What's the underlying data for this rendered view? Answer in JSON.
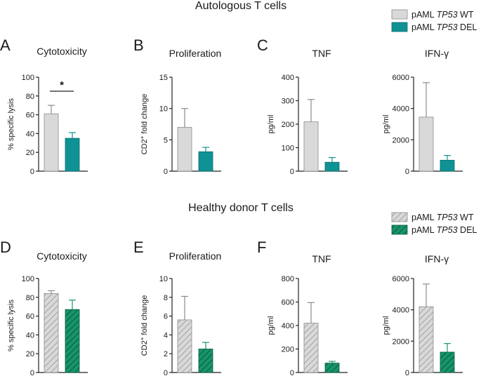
{
  "section_titles": {
    "top": "Autologous T cells",
    "bottom": "Healthy donor T cells"
  },
  "legend": {
    "top": [
      {
        "prefix": "pAML ",
        "gene": "TP53",
        "suffix": " WT",
        "style": "solid",
        "color": "#d9d9d9"
      },
      {
        "prefix": "pAML ",
        "gene": "TP53",
        "suffix": " DEL",
        "style": "solid",
        "color": "#0f9294"
      }
    ],
    "bottom": [
      {
        "prefix": "pAML ",
        "gene": "TP53",
        "suffix": " WT",
        "style": "hatched",
        "color": "#d9d9d9"
      },
      {
        "prefix": "pAML ",
        "gene": "TP53",
        "suffix": " DEL",
        "style": "hatched",
        "color": "#17956a"
      }
    ]
  },
  "colors": {
    "wt_fill": "#d9d9d9",
    "del_fill_autologous": "#0f9294",
    "del_fill_healthy": "#17956a",
    "axis": "#222222"
  },
  "chart_data": [
    {
      "panel": "A",
      "title": "Cytotoxicity",
      "type": "bar",
      "ylabel": "% specific lysis",
      "ylim": [
        0,
        100
      ],
      "yticks": [
        0,
        20,
        40,
        60,
        80,
        100
      ],
      "categories": [
        "pAML TP53 WT",
        "pAML TP53 DEL"
      ],
      "values": [
        61,
        35
      ],
      "errors": [
        9,
        6
      ],
      "pattern": "solid",
      "significance": "*"
    },
    {
      "panel": "B",
      "title": "Proliferation",
      "type": "bar",
      "ylabel": "CD2+ fold change",
      "ylim": [
        0,
        15
      ],
      "yticks": [
        0,
        5,
        10,
        15
      ],
      "categories": [
        "pAML TP53 WT",
        "pAML TP53 DEL"
      ],
      "values": [
        7.0,
        3.1
      ],
      "errors": [
        3.0,
        0.7
      ],
      "pattern": "solid"
    },
    {
      "panel": "C",
      "title": "TNF",
      "type": "bar",
      "ylabel": "pg/ml",
      "ylim": [
        0,
        400
      ],
      "yticks": [
        0,
        100,
        200,
        300,
        400
      ],
      "categories": [
        "pAML TP53 WT",
        "pAML TP53 DEL"
      ],
      "values": [
        210,
        38
      ],
      "errors": [
        95,
        20
      ],
      "pattern": "solid"
    },
    {
      "panel": "",
      "title": "IFN-γ",
      "type": "bar",
      "ylabel": "pg/ml",
      "ylim": [
        0,
        6000
      ],
      "yticks": [
        0,
        2000,
        4000,
        6000
      ],
      "categories": [
        "pAML TP53 WT",
        "pAML TP53 DEL"
      ],
      "values": [
        3450,
        700
      ],
      "errors": [
        2200,
        300
      ],
      "pattern": "solid"
    },
    {
      "panel": "D",
      "title": "Cytotoxicity",
      "type": "bar",
      "ylabel": "% specific lysis",
      "ylim": [
        0,
        100
      ],
      "yticks": [
        0,
        20,
        40,
        60,
        80,
        100
      ],
      "categories": [
        "pAML TP53 WT",
        "pAML TP53 DEL"
      ],
      "values": [
        84,
        67
      ],
      "errors": [
        3,
        10
      ],
      "pattern": "hatched"
    },
    {
      "panel": "E",
      "title": "Proliferation",
      "type": "bar",
      "ylabel": "CD2+ fold change",
      "ylim": [
        0,
        10
      ],
      "yticks": [
        0,
        2,
        4,
        6,
        8,
        10
      ],
      "categories": [
        "pAML TP53 WT",
        "pAML TP53 DEL"
      ],
      "values": [
        5.6,
        2.5
      ],
      "errors": [
        2.5,
        0.7
      ],
      "pattern": "hatched"
    },
    {
      "panel": "F",
      "title": "TNF",
      "type": "bar",
      "ylabel": "pg/ml",
      "ylim": [
        0,
        800
      ],
      "yticks": [
        0,
        200,
        400,
        600,
        800
      ],
      "categories": [
        "pAML TP53 WT",
        "pAML TP53 DEL"
      ],
      "values": [
        420,
        80
      ],
      "errors": [
        175,
        15
      ],
      "pattern": "hatched"
    },
    {
      "panel": "",
      "title": "IFN-γ",
      "type": "bar",
      "ylabel": "pg/ml",
      "ylim": [
        0,
        6000
      ],
      "yticks": [
        0,
        2000,
        4000,
        6000
      ],
      "categories": [
        "pAML TP53 WT",
        "pAML TP53 DEL"
      ],
      "values": [
        4200,
        1300
      ],
      "errors": [
        1450,
        550
      ],
      "pattern": "hatched"
    }
  ]
}
